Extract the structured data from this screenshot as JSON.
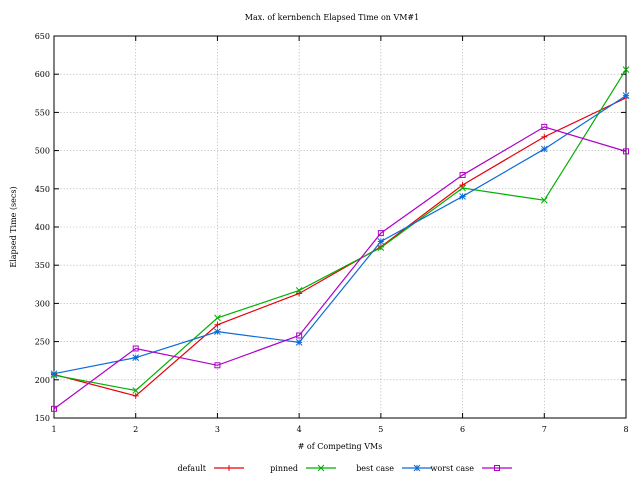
{
  "chart_data": {
    "type": "line",
    "title": "Max. of kernbench Elapsed Time on VM#1",
    "xlabel": "# of Competing VMs",
    "ylabel": "Elapsed Time (secs)",
    "x": [
      1,
      2,
      3,
      4,
      5,
      6,
      7,
      8
    ],
    "xlim": [
      1,
      8
    ],
    "ylim": [
      150,
      650
    ],
    "xticks": [
      "1",
      "2",
      "3",
      "4",
      "5",
      "6",
      "7",
      "8"
    ],
    "yticks": [
      "150",
      "200",
      "250",
      "300",
      "350",
      "400",
      "450",
      "500",
      "550",
      "600",
      "650"
    ],
    "grid": true,
    "legend_position": "bottom",
    "series": [
      {
        "name": "default",
        "marker": "plus",
        "color": "#e8000b",
        "values": [
          207,
          179,
          272,
          313,
          374,
          455,
          518,
          569
        ]
      },
      {
        "name": "pinned",
        "marker": "cross",
        "color": "#00b000",
        "values": [
          206,
          186,
          281,
          317,
          373,
          451,
          435,
          606
        ]
      },
      {
        "name": "best case",
        "marker": "star",
        "color": "#0d6bd8",
        "values": [
          208,
          229,
          263,
          249,
          381,
          440,
          502,
          572
        ]
      },
      {
        "name": "worst case",
        "marker": "square",
        "color": "#b000c8",
        "values": [
          162,
          241,
          219,
          258,
          392,
          468,
          531,
          499
        ]
      }
    ]
  }
}
